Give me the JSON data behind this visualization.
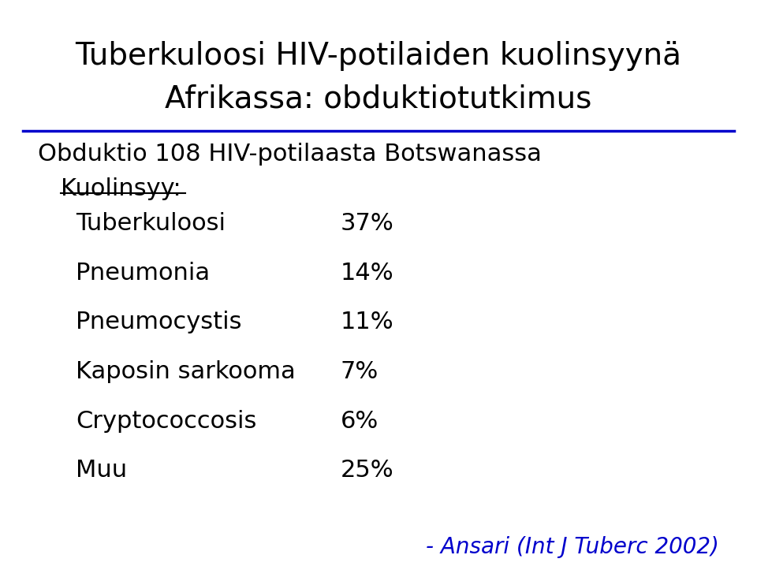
{
  "title_line1": "Tuberkuloosi HIV-potilaiden kuolinsyynä",
  "title_line2": "Afrikassa: obduktiotutkimus",
  "subtitle": "Obduktio 108 HIV-potilaasta Botswanassa",
  "section_label": "Kuolinsyy:",
  "rows": [
    {
      "label": "Tuberkuloosi",
      "value": "37%"
    },
    {
      "label": "Pneumonia",
      "value": "14%"
    },
    {
      "label": "Pneumocystis",
      "value": "11%"
    },
    {
      "label": "Kaposin sarkooma",
      "value": "7%"
    },
    {
      "label": "Cryptococcosis",
      "value": "6%"
    },
    {
      "label": "Muu",
      "value": "25%"
    }
  ],
  "citation": "- Ansari (Int J Tuberc 2002)",
  "bg_color": "#ffffff",
  "title_color": "#000000",
  "text_color": "#000000",
  "citation_color": "#0000cc",
  "line_color": "#0000cc",
  "title_fontsize": 28,
  "subtitle_fontsize": 22,
  "section_fontsize": 22,
  "row_fontsize": 22,
  "citation_fontsize": 20
}
